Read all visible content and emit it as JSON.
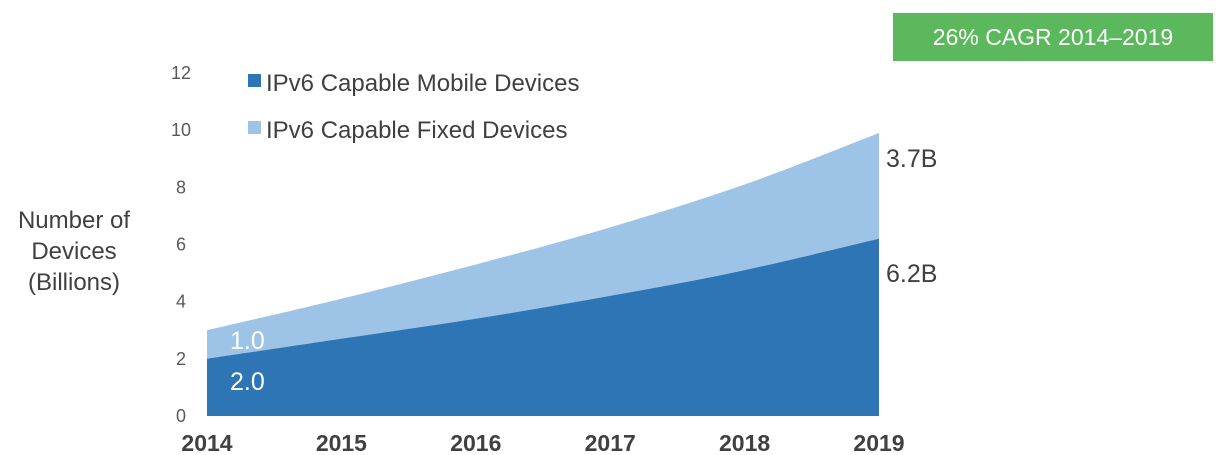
{
  "chart_data": {
    "type": "area",
    "stacked": true,
    "categories": [
      "2014",
      "2015",
      "2016",
      "2017",
      "2018",
      "2019"
    ],
    "series": [
      {
        "name": "IPv6 Capable Mobile Devices",
        "color": "#2e75b6",
        "values": [
          2.0,
          2.7,
          3.4,
          4.2,
          5.1,
          6.2
        ]
      },
      {
        "name": "IPv6 Capable Fixed Devices",
        "color": "#9dc3e6",
        "values": [
          1.0,
          1.4,
          1.9,
          2.4,
          3.0,
          3.7
        ]
      }
    ],
    "ylabel": [
      "Number of",
      "Devices",
      "(Billions)"
    ],
    "ylim": [
      0,
      12
    ],
    "yticks": [
      "0",
      "2",
      "4",
      "6",
      "8",
      "10",
      "12"
    ],
    "grid": false,
    "legend_position": "top-left",
    "annotations": {
      "mobile_start": "2.0",
      "fixed_start": "1.0",
      "fixed_end": "3.7B",
      "mobile_end": "6.2B"
    },
    "badge": {
      "text": "26% CAGR 2014–2019",
      "color": "#5cb85c"
    }
  }
}
